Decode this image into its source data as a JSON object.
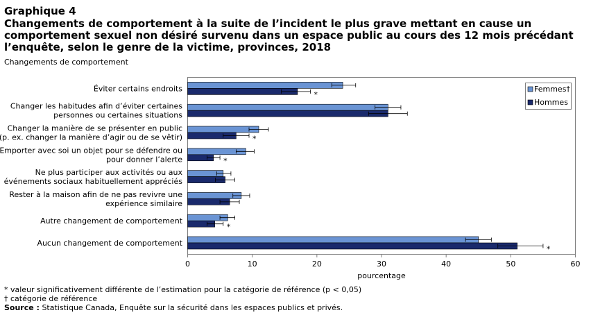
{
  "header": {
    "label": "Graphique 4",
    "title_lines": [
      "Changements de comportement à la suite de l’incident le plus grave mettant en cause un",
      "comportement sexuel non désiré survenu dans un espace public au cours des 12 mois précédant",
      "l’enquête, selon le genre de la victime, provinces, 2018"
    ],
    "subtitle": "Changements de comportement"
  },
  "chart_data": {
    "type": "bar",
    "orientation": "horizontal",
    "title": "Changements de comportement à la suite de l’incident le plus grave mettant en cause un comportement sexuel non désiré survenu dans un espace public au cours des 12 mois précédant l’enquête, selon le genre de la victime, provinces, 2018",
    "ylabel": "Changements de comportement",
    "xlabel": "pourcentage",
    "xlim": [
      0,
      60
    ],
    "xticks": [
      0,
      10,
      20,
      30,
      40,
      50,
      60
    ],
    "grid": false,
    "legend_position": "top-right",
    "categories": [
      [
        "Éviter certains endroits"
      ],
      [
        "Changer les habitudes afin d’éviter certaines",
        "personnes ou certaines situations"
      ],
      [
        "Changer la manière de se présenter en public",
        "(p. ex. changer la manière d’agir ou de se vêtir)"
      ],
      [
        "Emporter avec soi un objet pour se défendre ou",
        "pour donner l’alerte"
      ],
      [
        "Ne plus participer aux activités ou aux",
        "événements sociaux habituellement appréciés"
      ],
      [
        "Rester à la maison afin de ne pas revivre une",
        "expérience similaire"
      ],
      [
        "Autre changement de comportement"
      ],
      [
        "Aucun changement de comportement"
      ]
    ],
    "series": [
      {
        "name": "Femmes†",
        "color": "#6a94d4",
        "values": [
          24.0,
          31.0,
          11.0,
          9.0,
          5.5,
          8.3,
          6.2,
          45.0
        ],
        "ci_low": [
          22.3,
          29.0,
          9.5,
          7.5,
          4.5,
          7.0,
          5.0,
          43.0
        ],
        "ci_high": [
          26.0,
          33.0,
          12.5,
          10.3,
          6.7,
          9.6,
          7.3,
          47.0
        ],
        "significance": [
          "",
          "",
          "",
          "",
          "",
          "",
          "",
          ""
        ]
      },
      {
        "name": "Hommes",
        "color": "#1a2a6c",
        "values": [
          17.0,
          31.0,
          7.5,
          4.0,
          5.8,
          6.5,
          4.2,
          51.0
        ],
        "ci_low": [
          14.5,
          28.0,
          5.5,
          3.0,
          4.3,
          5.0,
          3.0,
          48.0
        ],
        "ci_high": [
          19.0,
          34.0,
          9.5,
          5.0,
          7.3,
          8.0,
          5.5,
          55.0
        ],
        "significance": [
          "*",
          "",
          "*",
          "*",
          "",
          "",
          "*",
          "*"
        ]
      }
    ]
  },
  "footnotes": {
    "note1": "* valeur significativement différente de l’estimation pour la catégorie de référence (p < 0,05)",
    "note2": "† catégorie de référence",
    "source_label": "Source :",
    "source_text": " Statistique Canada, Enquête sur la sécurité dans les espaces publics et privés."
  }
}
